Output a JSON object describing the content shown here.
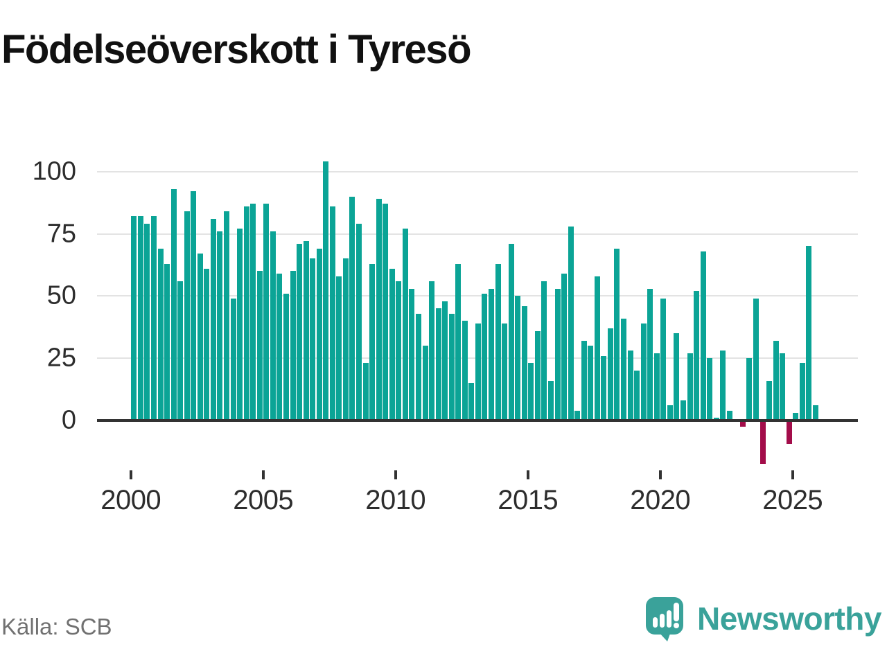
{
  "title": "Födelseöverskott i Tyresö",
  "source": "Källa: SCB",
  "brand": {
    "name": "Newsworthy",
    "logo_icon": "speech-bubble-bar-chart-icon"
  },
  "colors": {
    "bar_positive": "#0ba496",
    "bar_negative": "#a30d4a",
    "axis": "#333333",
    "grid": "#e3e3e3",
    "tick_text": "#2d2d2d",
    "muted_text": "#717171",
    "brand_teal": "#3aa29a",
    "title_text": "#111111"
  },
  "y_axis": {
    "ticks": [
      "0",
      "25",
      "50",
      "75",
      "100"
    ],
    "tick_values": [
      0,
      25,
      50,
      75,
      100
    ]
  },
  "x_axis": {
    "ticks": [
      "2000",
      "2005",
      "2010",
      "2015",
      "2020",
      "2025"
    ],
    "tick_values": [
      2000,
      2005,
      2010,
      2015,
      2020,
      2025
    ]
  },
  "chart_data": {
    "type": "bar",
    "title": "Födelseöverskott i Tyresö",
    "xlabel": "",
    "ylabel": "",
    "ylim": [
      -20,
      110
    ],
    "grid": "horizontal",
    "legend": "none",
    "frequency": "quarterly",
    "x_start": "2000Q1",
    "x_end": "2025Q4",
    "categories": [
      "2000Q1",
      "2000Q2",
      "2000Q3",
      "2000Q4",
      "2001Q1",
      "2001Q2",
      "2001Q3",
      "2001Q4",
      "2002Q1",
      "2002Q2",
      "2002Q3",
      "2002Q4",
      "2003Q1",
      "2003Q2",
      "2003Q3",
      "2003Q4",
      "2004Q1",
      "2004Q2",
      "2004Q3",
      "2004Q4",
      "2005Q1",
      "2005Q2",
      "2005Q3",
      "2005Q4",
      "2006Q1",
      "2006Q2",
      "2006Q3",
      "2006Q4",
      "2007Q1",
      "2007Q2",
      "2007Q3",
      "2007Q4",
      "2008Q1",
      "2008Q2",
      "2008Q3",
      "2008Q4",
      "2009Q1",
      "2009Q2",
      "2009Q3",
      "2009Q4",
      "2010Q1",
      "2010Q2",
      "2010Q3",
      "2010Q4",
      "2011Q1",
      "2011Q2",
      "2011Q3",
      "2011Q4",
      "2012Q1",
      "2012Q2",
      "2012Q3",
      "2012Q4",
      "2013Q1",
      "2013Q2",
      "2013Q3",
      "2013Q4",
      "2014Q1",
      "2014Q2",
      "2014Q3",
      "2014Q4",
      "2015Q1",
      "2015Q2",
      "2015Q3",
      "2015Q4",
      "2016Q1",
      "2016Q2",
      "2016Q3",
      "2016Q4",
      "2017Q1",
      "2017Q2",
      "2017Q3",
      "2017Q4",
      "2018Q1",
      "2018Q2",
      "2018Q3",
      "2018Q4",
      "2019Q1",
      "2019Q2",
      "2019Q3",
      "2019Q4",
      "2020Q1",
      "2020Q2",
      "2020Q3",
      "2020Q4",
      "2021Q1",
      "2021Q2",
      "2021Q3",
      "2021Q4",
      "2022Q1",
      "2022Q2",
      "2022Q3",
      "2022Q4",
      "2023Q1",
      "2023Q2",
      "2023Q3",
      "2023Q4",
      "2024Q1",
      "2024Q2",
      "2024Q3",
      "2024Q4",
      "2025Q1",
      "2025Q2",
      "2025Q3",
      "2025Q4"
    ],
    "values": [
      82,
      82,
      79,
      82,
      69,
      63,
      93,
      56,
      84,
      92,
      67,
      61,
      81,
      76,
      84,
      49,
      77,
      86,
      87,
      60,
      87,
      76,
      59,
      51,
      60,
      71,
      72,
      65,
      69,
      104,
      86,
      58,
      65,
      90,
      79,
      23,
      63,
      89,
      87,
      61,
      56,
      77,
      53,
      43,
      30,
      56,
      45,
      48,
      43,
      63,
      40,
      15,
      39,
      51,
      53,
      63,
      39,
      71,
      50,
      46,
      23,
      36,
      56,
      16,
      53,
      59,
      78,
      4,
      32,
      30,
      58,
      26,
      37,
      69,
      41,
      28,
      20,
      39,
      53,
      27,
      49,
      6,
      35,
      8,
      27,
      52,
      68,
      25,
      1,
      28,
      4,
      0,
      -2,
      25,
      49,
      -17,
      16,
      32,
      27,
      -9,
      3,
      23,
      70,
      6
    ]
  }
}
